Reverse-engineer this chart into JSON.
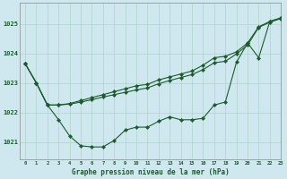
{
  "title": "Graphe pression niveau de la mer (hPa)",
  "background_color": "#cfe8f0",
  "grid_color": "#b0d4c8",
  "line_color": "#1a5c2a",
  "xlim": [
    -0.5,
    23
  ],
  "ylim": [
    1020.4,
    1025.7
  ],
  "ytick_values": [
    1021,
    1022,
    1023,
    1024,
    1025
  ],
  "line1": [
    1023.65,
    1023.0,
    1022.25,
    1021.75,
    1021.2,
    1020.87,
    1020.83,
    1020.83,
    1021.05,
    1021.4,
    1021.5,
    1021.5,
    1021.7,
    1021.85,
    1021.75,
    1021.75,
    1021.8,
    1022.25,
    1022.35,
    1023.7,
    1024.35,
    1023.85,
    1025.08,
    1025.2
  ],
  "line2": [
    1023.65,
    1023.0,
    1022.25,
    1022.25,
    1022.3,
    1022.4,
    1022.5,
    1022.6,
    1022.7,
    1022.8,
    1022.9,
    1022.95,
    1023.1,
    1023.2,
    1023.3,
    1023.4,
    1023.6,
    1023.85,
    1023.9,
    1024.05,
    1024.35,
    1024.9,
    1025.08,
    1025.2
  ],
  "line3": [
    1023.65,
    1023.0,
    1022.25,
    1022.25,
    1022.28,
    1022.35,
    1022.43,
    1022.52,
    1022.6,
    1022.68,
    1022.76,
    1022.83,
    1022.97,
    1023.08,
    1023.18,
    1023.28,
    1023.45,
    1023.68,
    1023.73,
    1023.98,
    1024.28,
    1024.88,
    1025.05,
    1025.18
  ]
}
